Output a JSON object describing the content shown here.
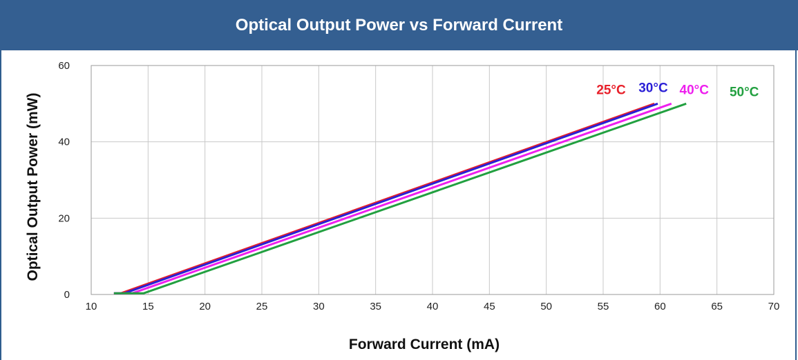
{
  "chart_data": {
    "type": "line",
    "title": "Optical Output Power vs Forward Current",
    "xlabel": "Forward Current (mA)",
    "ylabel": "Optical Output Power (mW)",
    "xlim": [
      10,
      70
    ],
    "ylim": [
      0,
      60
    ],
    "x_ticks": [
      10,
      15,
      20,
      25,
      30,
      35,
      40,
      45,
      50,
      55,
      60,
      65,
      70
    ],
    "y_ticks": [
      0,
      20,
      40,
      60
    ],
    "grid": true,
    "series": [
      {
        "name": "25°C",
        "color": "#e8202a",
        "points": [
          [
            12,
            0.3
          ],
          [
            12.6,
            0.3
          ],
          [
            59.5,
            50
          ]
        ]
      },
      {
        "name": "30°C",
        "color": "#2a1fd6",
        "points": [
          [
            12,
            0.3
          ],
          [
            12.9,
            0.3
          ],
          [
            59.8,
            50
          ]
        ]
      },
      {
        "name": "40°C",
        "color": "#ee1fee",
        "points": [
          [
            12,
            0.3
          ],
          [
            13.6,
            0.3
          ],
          [
            61.0,
            50
          ]
        ]
      },
      {
        "name": "50°C",
        "color": "#22a040",
        "points": [
          [
            12,
            0.3
          ],
          [
            14.6,
            0.3
          ],
          [
            62.3,
            50
          ]
        ]
      }
    ],
    "series_labels": [
      {
        "text": "25°C",
        "color": "#e8202a",
        "at": [
          55.7,
          52.5
        ]
      },
      {
        "text": "30°C",
        "color": "#2a1fd6",
        "at": [
          59.4,
          53.0
        ]
      },
      {
        "text": "40°C",
        "color": "#ee1fee",
        "at": [
          63.0,
          52.5
        ]
      },
      {
        "text": "50°C",
        "color": "#22a040",
        "at": [
          67.4,
          52.0
        ]
      }
    ]
  }
}
